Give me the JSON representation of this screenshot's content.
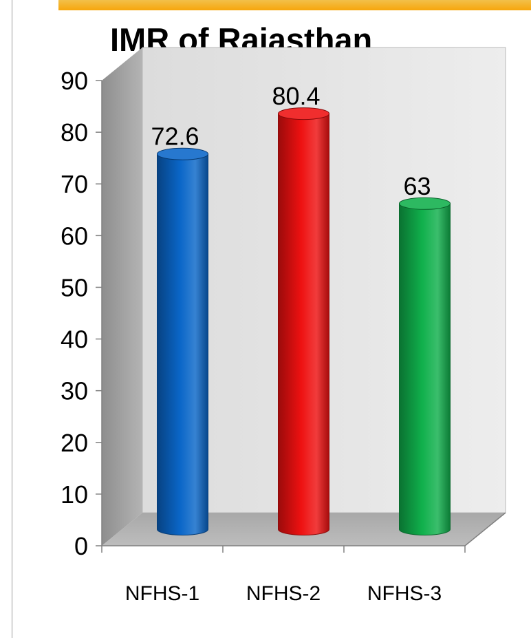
{
  "chart_data": {
    "type": "bar",
    "title": "IMR of Rajasthan",
    "categories": [
      "NFHS-1",
      "NFHS-2",
      "NFHS-3"
    ],
    "values": [
      72.6,
      80.4,
      63
    ],
    "data_labels": [
      "72.6",
      "80.4",
      "63"
    ],
    "colors": [
      "#0a66c8",
      "#ee1111",
      "#10b04c"
    ],
    "ylim": [
      0,
      90
    ],
    "yticks": [
      0,
      10,
      20,
      30,
      40,
      50,
      60,
      70,
      80,
      90
    ],
    "xlabel": "",
    "ylabel": "",
    "grid": false,
    "legend": "none",
    "style": "3d-cylinder"
  }
}
